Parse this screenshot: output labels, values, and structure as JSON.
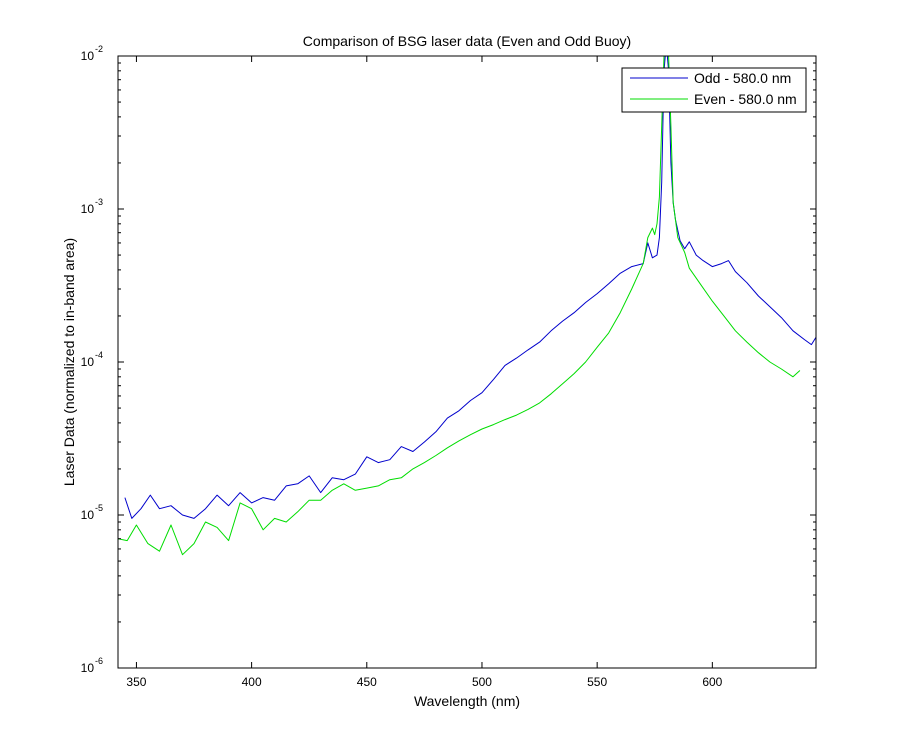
{
  "chart_data": {
    "type": "line",
    "title": "Comparison of BSG laser data (Even and Odd Buoy)",
    "xlabel": "Wavelength (nm)",
    "ylabel": "Laser Data (normalized to in-band area)",
    "xlim": [
      342,
      645
    ],
    "ylim": [
      1e-06,
      0.01
    ],
    "yscale": "log",
    "grid": false,
    "legend_position": "top-right",
    "x_ticks": [
      350,
      400,
      450,
      500,
      550,
      600
    ],
    "y_ticks": [
      {
        "value": 1e-06,
        "base": "10",
        "exp": "-6"
      },
      {
        "value": 1e-05,
        "base": "10",
        "exp": "-5"
      },
      {
        "value": 0.0001,
        "base": "10",
        "exp": "-4"
      },
      {
        "value": 0.001,
        "base": "10",
        "exp": "-3"
      },
      {
        "value": 0.01,
        "base": "10",
        "exp": "-2"
      }
    ],
    "series": [
      {
        "name": "Odd - 580.0 nm",
        "color": "#0000cc",
        "x": [
          345,
          348,
          352,
          356,
          360,
          365,
          370,
          375,
          380,
          385,
          390,
          395,
          400,
          405,
          410,
          415,
          420,
          425,
          430,
          435,
          440,
          445,
          450,
          455,
          460,
          465,
          470,
          475,
          480,
          485,
          490,
          495,
          500,
          505,
          510,
          515,
          520,
          525,
          530,
          535,
          540,
          545,
          550,
          555,
          560,
          565,
          570,
          572,
          574,
          576,
          577,
          578,
          579,
          580,
          581,
          582,
          583,
          584,
          586,
          588,
          590,
          593,
          596,
          600,
          604,
          607,
          610,
          615,
          620,
          625,
          630,
          635,
          640,
          643,
          645
        ],
        "y": [
          1.3e-05,
          9.5e-06,
          1.1e-05,
          1.35e-05,
          1.1e-05,
          1.15e-05,
          1e-05,
          9.5e-06,
          1.1e-05,
          1.35e-05,
          1.15e-05,
          1.4e-05,
          1.2e-05,
          1.3e-05,
          1.25e-05,
          1.55e-05,
          1.6e-05,
          1.8e-05,
          1.4e-05,
          1.75e-05,
          1.7e-05,
          1.85e-05,
          2.4e-05,
          2.2e-05,
          2.3e-05,
          2.8e-05,
          2.6e-05,
          3e-05,
          3.5e-05,
          4.3e-05,
          4.8e-05,
          5.6e-05,
          6.3e-05,
          7.7e-05,
          9.5e-05,
          0.000106,
          0.00012,
          0.000135,
          0.00016,
          0.000185,
          0.00021,
          0.000245,
          0.00028,
          0.000325,
          0.00038,
          0.00042,
          0.00044,
          0.0006,
          0.00048,
          0.0005,
          0.00065,
          0.0015,
          0.008,
          0.012,
          0.008,
          0.002,
          0.0011,
          0.00085,
          0.00062,
          0.00055,
          0.00061,
          0.0005,
          0.00046,
          0.00042,
          0.00044,
          0.00046,
          0.00039,
          0.00033,
          0.00027,
          0.00023,
          0.000195,
          0.00016,
          0.00014,
          0.00013,
          0.000145
        ]
      },
      {
        "name": "Even - 580.0 nm",
        "color": "#00dd00",
        "x": [
          342,
          346,
          350,
          355,
          360,
          365,
          370,
          375,
          380,
          385,
          390,
          395,
          400,
          405,
          410,
          415,
          420,
          425,
          430,
          435,
          440,
          445,
          450,
          455,
          460,
          465,
          470,
          475,
          480,
          485,
          490,
          495,
          500,
          505,
          510,
          515,
          520,
          525,
          530,
          535,
          540,
          545,
          550,
          555,
          560,
          565,
          570,
          572,
          574,
          575,
          576,
          577,
          578,
          579,
          580,
          581,
          582,
          583,
          585,
          588,
          590,
          595,
          600,
          605,
          610,
          615,
          620,
          625,
          630,
          635,
          638
        ],
        "y": [
          7e-06,
          6.8e-06,
          8.6e-06,
          6.5e-06,
          5.8e-06,
          8.6e-06,
          5.5e-06,
          6.5e-06,
          9e-06,
          8.3e-06,
          6.8e-06,
          1.2e-05,
          1.1e-05,
          8e-06,
          9.5e-06,
          9e-06,
          1.05e-05,
          1.25e-05,
          1.25e-05,
          1.45e-05,
          1.6e-05,
          1.45e-05,
          1.5e-05,
          1.55e-05,
          1.7e-05,
          1.75e-05,
          2e-05,
          2.2e-05,
          2.45e-05,
          2.75e-05,
          3.05e-05,
          3.35e-05,
          3.65e-05,
          3.9e-05,
          4.2e-05,
          4.5e-05,
          4.9e-05,
          5.4e-05,
          6.2e-05,
          7.2e-05,
          8.4e-05,
          0.0001,
          0.000125,
          0.000155,
          0.00021,
          0.0003,
          0.00044,
          0.00065,
          0.00075,
          0.00068,
          0.0008,
          0.0012,
          0.0035,
          0.01,
          0.012,
          0.01,
          0.0035,
          0.0011,
          0.00065,
          0.00052,
          0.00041,
          0.00032,
          0.00025,
          0.0002,
          0.00016,
          0.000135,
          0.000115,
          0.0001,
          9e-05,
          8e-05,
          8.8e-05
        ]
      }
    ]
  }
}
